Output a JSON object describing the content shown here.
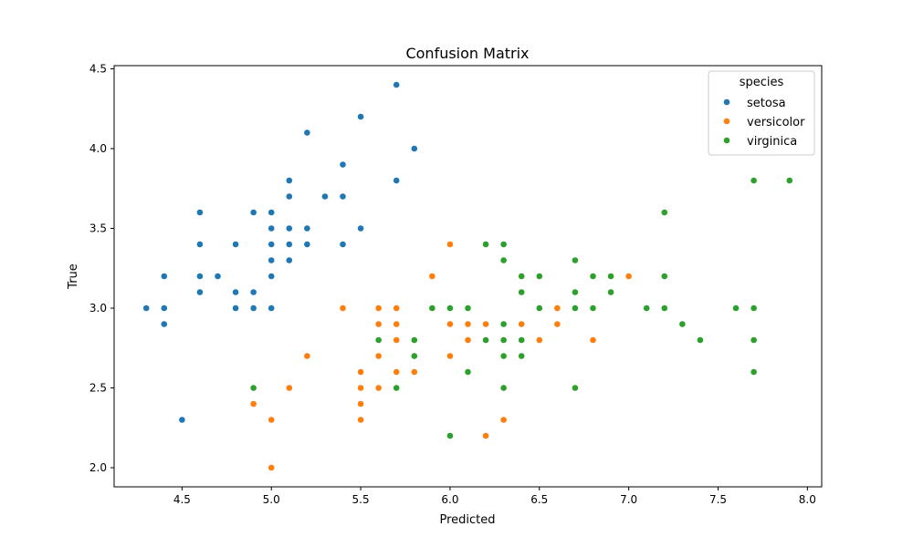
{
  "chart_data": {
    "type": "scatter",
    "title": "Confusion Matrix",
    "xlabel": "Predicted",
    "ylabel": "True",
    "xlim": [
      4.12,
      8.08
    ],
    "ylim": [
      1.88,
      4.52
    ],
    "xticks": [
      4.5,
      5.0,
      5.5,
      6.0,
      6.5,
      7.0,
      7.5,
      8.0
    ],
    "xtick_labels": [
      "4.5",
      "5.0",
      "5.5",
      "6.0",
      "6.5",
      "7.0",
      "7.5",
      "8.0"
    ],
    "yticks": [
      2.0,
      2.5,
      3.0,
      3.5,
      4.0,
      4.5
    ],
    "ytick_labels": [
      "2.0",
      "2.5",
      "3.0",
      "3.5",
      "4.0",
      "4.5"
    ],
    "grid": false,
    "legend": {
      "title": "species",
      "placement": "top-right"
    },
    "series": [
      {
        "name": "setosa",
        "color": "#1f77b4",
        "points": [
          [
            4.3,
            3.0
          ],
          [
            4.4,
            2.9
          ],
          [
            4.4,
            3.0
          ],
          [
            4.4,
            3.2
          ],
          [
            4.5,
            2.3
          ],
          [
            4.6,
            3.1
          ],
          [
            4.6,
            3.2
          ],
          [
            4.6,
            3.4
          ],
          [
            4.6,
            3.6
          ],
          [
            4.7,
            3.2
          ],
          [
            4.8,
            3.0
          ],
          [
            4.8,
            3.1
          ],
          [
            4.8,
            3.4
          ],
          [
            4.9,
            3.0
          ],
          [
            4.9,
            3.1
          ],
          [
            4.9,
            3.6
          ],
          [
            5.0,
            3.0
          ],
          [
            5.0,
            3.2
          ],
          [
            5.0,
            3.3
          ],
          [
            5.0,
            3.4
          ],
          [
            5.0,
            3.5
          ],
          [
            5.0,
            3.6
          ],
          [
            5.1,
            3.3
          ],
          [
            5.1,
            3.4
          ],
          [
            5.1,
            3.5
          ],
          [
            5.1,
            3.7
          ],
          [
            5.1,
            3.8
          ],
          [
            5.2,
            3.4
          ],
          [
            5.2,
            3.5
          ],
          [
            5.2,
            4.1
          ],
          [
            5.3,
            3.7
          ],
          [
            5.4,
            3.4
          ],
          [
            5.4,
            3.7
          ],
          [
            5.4,
            3.9
          ],
          [
            5.5,
            3.5
          ],
          [
            5.5,
            4.2
          ],
          [
            5.7,
            3.8
          ],
          [
            5.7,
            4.4
          ],
          [
            5.8,
            4.0
          ]
        ]
      },
      {
        "name": "versicolor",
        "color": "#ff7f0e",
        "points": [
          [
            4.9,
            2.4
          ],
          [
            5.0,
            2.0
          ],
          [
            5.0,
            2.3
          ],
          [
            5.1,
            2.5
          ],
          [
            5.2,
            2.7
          ],
          [
            5.4,
            3.0
          ],
          [
            5.5,
            2.3
          ],
          [
            5.5,
            2.4
          ],
          [
            5.5,
            2.5
          ],
          [
            5.5,
            2.6
          ],
          [
            5.6,
            2.5
          ],
          [
            5.6,
            2.7
          ],
          [
            5.6,
            2.9
          ],
          [
            5.6,
            3.0
          ],
          [
            5.7,
            2.6
          ],
          [
            5.7,
            2.8
          ],
          [
            5.7,
            2.9
          ],
          [
            5.7,
            3.0
          ],
          [
            5.8,
            2.6
          ],
          [
            5.9,
            3.0
          ],
          [
            5.9,
            3.2
          ],
          [
            6.0,
            2.2
          ],
          [
            6.0,
            2.7
          ],
          [
            6.0,
            2.9
          ],
          [
            6.0,
            3.4
          ],
          [
            6.1,
            2.8
          ],
          [
            6.1,
            2.9
          ],
          [
            6.1,
            3.0
          ],
          [
            6.2,
            2.2
          ],
          [
            6.2,
            2.9
          ],
          [
            6.3,
            2.3
          ],
          [
            6.3,
            2.5
          ],
          [
            6.3,
            3.3
          ],
          [
            6.4,
            2.9
          ],
          [
            6.4,
            3.2
          ],
          [
            6.5,
            2.8
          ],
          [
            6.6,
            2.9
          ],
          [
            6.6,
            3.0
          ],
          [
            6.7,
            3.0
          ],
          [
            6.7,
            3.1
          ],
          [
            6.8,
            2.8
          ],
          [
            6.9,
            3.1
          ],
          [
            7.0,
            3.2
          ]
        ]
      },
      {
        "name": "virginica",
        "color": "#2ca02c",
        "points": [
          [
            4.9,
            2.5
          ],
          [
            5.6,
            2.8
          ],
          [
            5.7,
            2.5
          ],
          [
            5.8,
            2.7
          ],
          [
            5.8,
            2.8
          ],
          [
            5.9,
            3.0
          ],
          [
            6.0,
            2.2
          ],
          [
            6.0,
            3.0
          ],
          [
            6.1,
            2.6
          ],
          [
            6.1,
            3.0
          ],
          [
            6.2,
            2.8
          ],
          [
            6.2,
            3.4
          ],
          [
            6.3,
            2.5
          ],
          [
            6.3,
            2.7
          ],
          [
            6.3,
            2.8
          ],
          [
            6.3,
            2.9
          ],
          [
            6.3,
            3.3
          ],
          [
            6.3,
            3.4
          ],
          [
            6.4,
            2.7
          ],
          [
            6.4,
            2.8
          ],
          [
            6.4,
            3.1
          ],
          [
            6.4,
            3.2
          ],
          [
            6.5,
            3.0
          ],
          [
            6.5,
            3.2
          ],
          [
            6.7,
            2.5
          ],
          [
            6.7,
            3.0
          ],
          [
            6.7,
            3.1
          ],
          [
            6.7,
            3.3
          ],
          [
            6.8,
            3.0
          ],
          [
            6.8,
            3.2
          ],
          [
            6.9,
            3.1
          ],
          [
            6.9,
            3.2
          ],
          [
            7.1,
            3.0
          ],
          [
            7.2,
            3.0
          ],
          [
            7.2,
            3.2
          ],
          [
            7.2,
            3.6
          ],
          [
            7.3,
            2.9
          ],
          [
            7.4,
            2.8
          ],
          [
            7.6,
            3.0
          ],
          [
            7.7,
            2.6
          ],
          [
            7.7,
            2.8
          ],
          [
            7.7,
            3.0
          ],
          [
            7.7,
            3.8
          ],
          [
            7.9,
            3.8
          ]
        ]
      }
    ]
  }
}
